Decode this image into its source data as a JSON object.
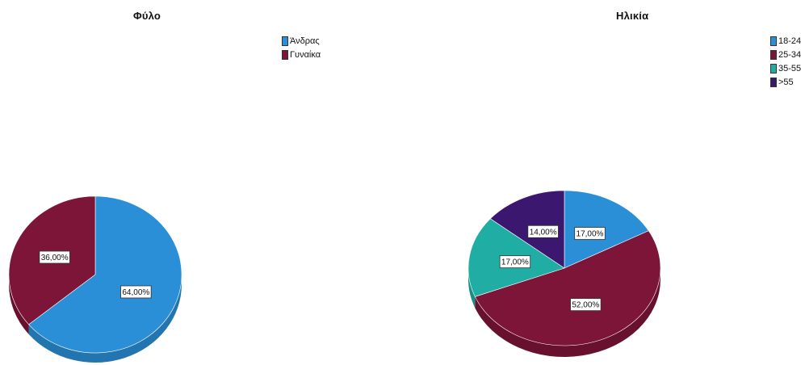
{
  "chart_data": [
    {
      "type": "pie",
      "title": "Φύλο",
      "categories": [
        "Άνδρας",
        "Γυναίκα"
      ],
      "values": [
        64,
        36
      ],
      "labels": [
        "64,00%",
        "36,00%"
      ],
      "colors": [
        "#2a8fd6",
        "#7d1538"
      ],
      "legend": "top-right"
    },
    {
      "type": "pie",
      "title": "Ηλικία",
      "categories": [
        "18-24",
        "25-34",
        "35-55",
        ">55"
      ],
      "values": [
        17,
        52,
        17,
        14
      ],
      "labels": [
        "17,00%",
        "52,00%",
        "17,00%",
        "14,00%"
      ],
      "colors": [
        "#2a8fd6",
        "#7d1538",
        "#20ada3",
        "#3b176f"
      ],
      "legend": "top-right"
    }
  ]
}
